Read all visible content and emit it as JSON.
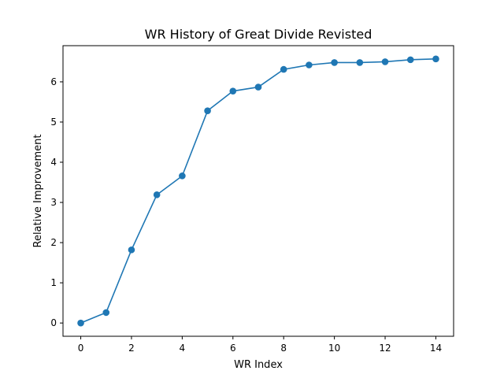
{
  "colors": {
    "series": "#1f77b4",
    "background": "#ffffff",
    "axes": "#000000"
  },
  "chart_data": {
    "type": "line",
    "title": "WR History of Great Divide Revisted",
    "xlabel": "WR Index",
    "ylabel": "Relative Improvement",
    "xlim": [
      -0.7,
      14.7
    ],
    "ylim": [
      -0.33,
      6.9
    ],
    "xticks": [
      0,
      2,
      4,
      6,
      8,
      10,
      12,
      14
    ],
    "yticks": [
      0,
      1,
      2,
      3,
      4,
      5,
      6
    ],
    "grid": false,
    "legend": "none",
    "marker": "circle",
    "series": [
      {
        "x": [
          0,
          1,
          2,
          3,
          4,
          5,
          6,
          7,
          8,
          9,
          10,
          11,
          12,
          13,
          14
        ],
        "y": [
          0.0,
          0.26,
          1.82,
          3.19,
          3.66,
          5.28,
          5.77,
          5.87,
          6.31,
          6.42,
          6.48,
          6.48,
          6.5,
          6.55,
          6.57
        ]
      }
    ]
  }
}
